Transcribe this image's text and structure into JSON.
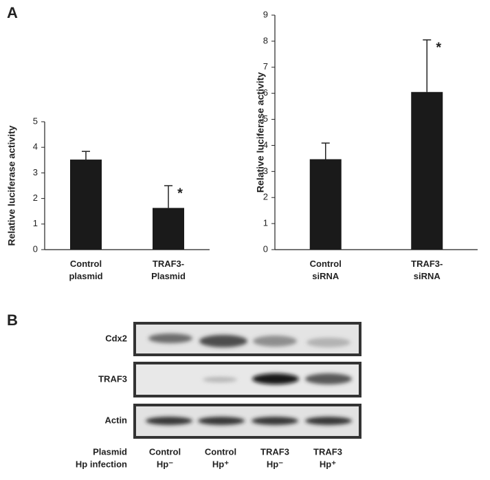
{
  "panel_a": {
    "label": "A"
  },
  "chart_data": [
    {
      "type": "bar",
      "ylabel": "Relative luciferase activity",
      "categories": [
        "Control\nplasmid",
        "TRAF3-\nPlasmid"
      ],
      "values": [
        3.52,
        1.63
      ],
      "error": [
        0.32,
        0.87
      ],
      "color": "#1a1a1a",
      "annotations": [
        "*"
      ],
      "ylim": [
        0,
        5
      ],
      "yticks": [
        0,
        1,
        2,
        3,
        4,
        5
      ],
      "grid": false
    },
    {
      "type": "bar",
      "ylabel": "Relative luciferase activity",
      "categories": [
        "Control\nsiRNA",
        "TRAF3-\nsiRNA"
      ],
      "values": [
        3.47,
        6.05
      ],
      "error": [
        0.62,
        2.0
      ],
      "color": "#1a1a1a",
      "annotations": [
        "*"
      ],
      "ylim": [
        0,
        9
      ],
      "yticks": [
        0,
        1,
        2,
        3,
        4,
        5,
        6,
        7,
        8,
        9
      ],
      "grid": false
    }
  ],
  "panel_b": {
    "label": "B",
    "rows": [
      "Cdx2",
      "TRAF3",
      "Actin"
    ],
    "header_labels": [
      "Plasmid",
      "Hp infection"
    ],
    "lanes": [
      {
        "plasmid": "Control",
        "hp": "Hp⁻"
      },
      {
        "plasmid": "Control",
        "hp": "Hp⁺"
      },
      {
        "plasmid": "TRAF3",
        "hp": "Hp⁻"
      },
      {
        "plasmid": "TRAF3",
        "hp": "Hp⁺"
      }
    ]
  }
}
